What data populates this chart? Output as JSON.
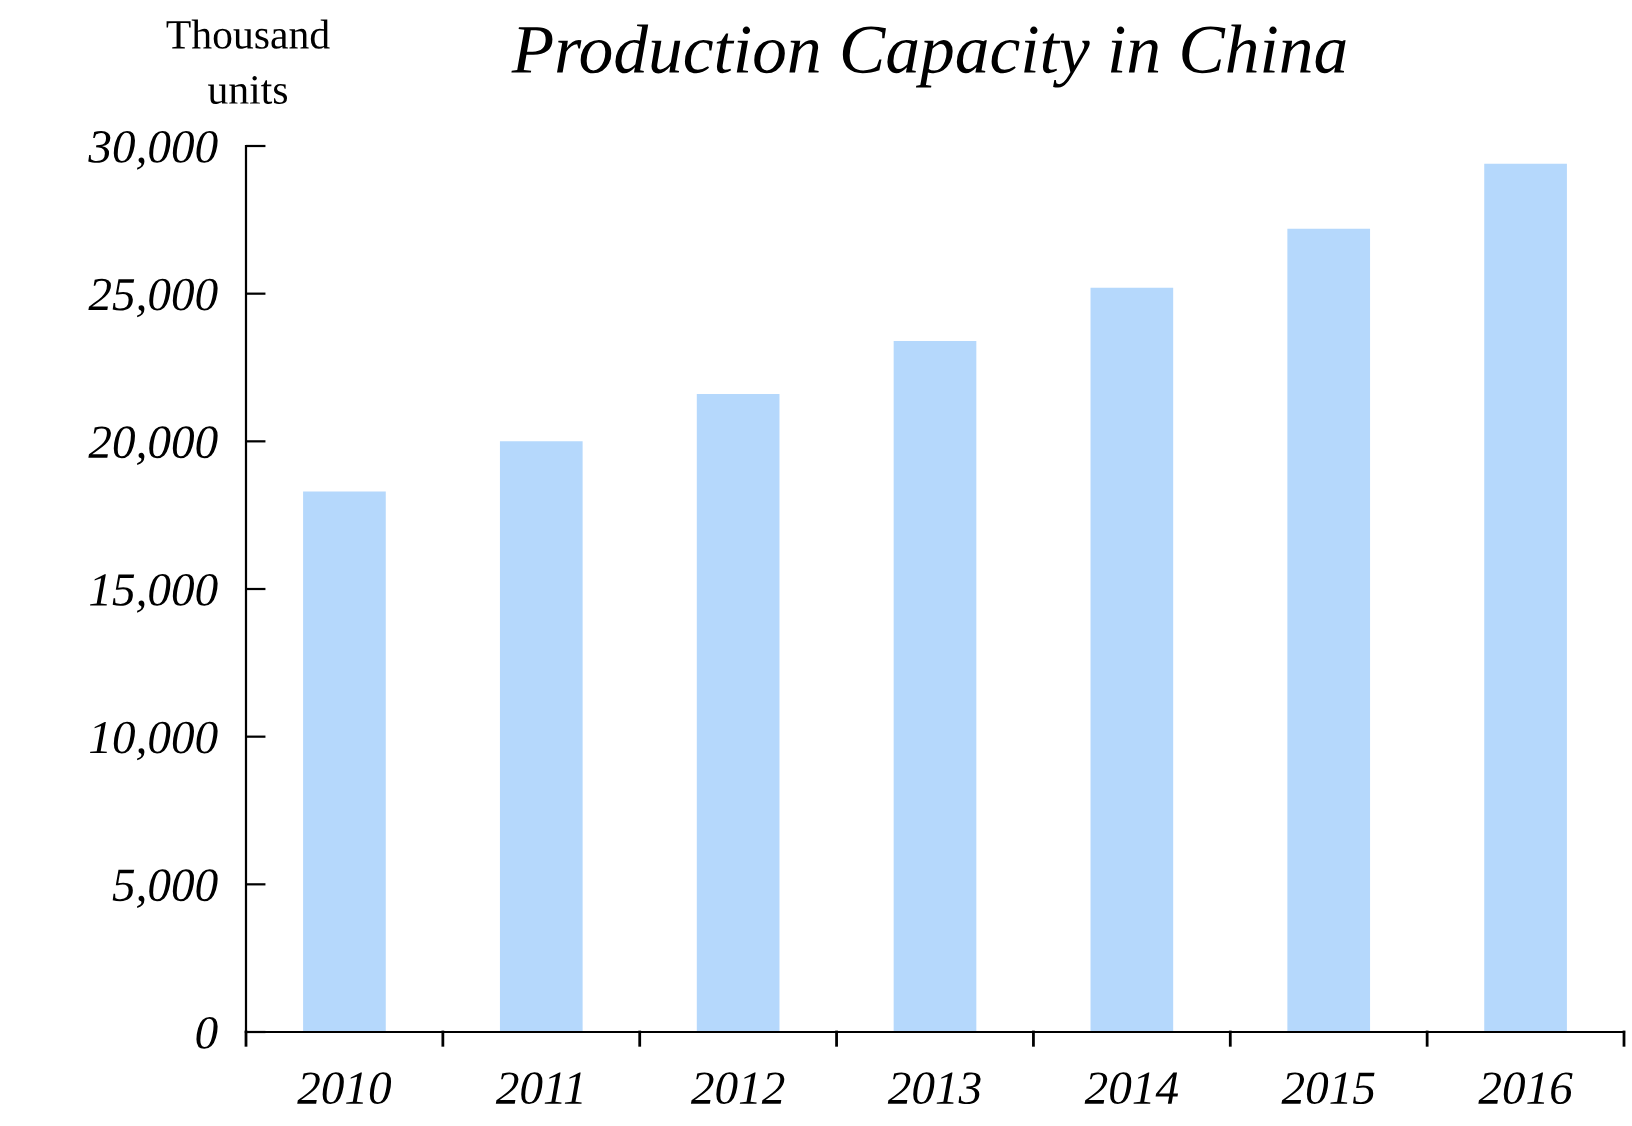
{
  "chart_data": {
    "type": "bar",
    "title": "Production Capacity in China",
    "ylabel": "Thousand\nunits",
    "categories": [
      "2010",
      "2011",
      "2012",
      "2013",
      "2014",
      "2015",
      "2016"
    ],
    "values": [
      18300,
      20000,
      21600,
      23400,
      25200,
      27200,
      29400
    ],
    "color": "#b5d8fc",
    "ylim": [
      0,
      30000
    ],
    "yticks": [
      {
        "value": 0,
        "label": "0"
      },
      {
        "value": 5000,
        "label": "5,000"
      },
      {
        "value": 10000,
        "label": "10,000"
      },
      {
        "value": 15000,
        "label": "15,000"
      },
      {
        "value": 20000,
        "label": "20,000"
      },
      {
        "value": 25000,
        "label": "25,000"
      },
      {
        "value": 30000,
        "label": "30,000"
      }
    ],
    "grid": false,
    "legend": false
  }
}
